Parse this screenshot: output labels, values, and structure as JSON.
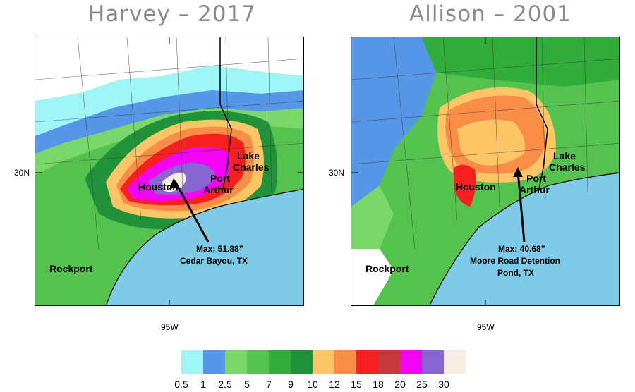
{
  "panels": [
    {
      "title": "Harvey – 2017",
      "lat_label": "30N",
      "lon_label": "95W",
      "cities": {
        "houston": "Houston",
        "port": "Port",
        "arthur": "Arthur",
        "lake": "Lake",
        "charles": "Charles",
        "rockport": "Rockport"
      },
      "max_line1": "Max: 51.88”",
      "max_line2": "Cedar Bayou, TX",
      "max_line3": ""
    },
    {
      "title": "Allison – 2001",
      "lat_label": "30N",
      "lon_label": "95W",
      "cities": {
        "houston": "Houston",
        "port": "Port",
        "arthur": "Arthur",
        "lake": "Lake",
        "charles": "Charles",
        "rockport": "Rockport"
      },
      "max_line1": "Max: 40.68”",
      "max_line2": "Moore Road Detention",
      "max_line3": "Pond, TX"
    }
  ],
  "legend": {
    "labels": [
      "0.5",
      "1",
      "2.5",
      "5",
      "7",
      "9",
      "10",
      "12",
      "15",
      "18",
      "20",
      "25",
      "30"
    ],
    "colors": [
      "#9ff5f5",
      "#5596e6",
      "#7ad86a",
      "#55c24f",
      "#32ad3c",
      "#21913a",
      "#fdc566",
      "#f98c47",
      "#f81f20",
      "#c7373b",
      "#f404f4",
      "#8766d2",
      "#f7ece2"
    ]
  },
  "colors": {
    "ocean": "#7fcbe7",
    "title_gray": "#8a8a8a"
  }
}
